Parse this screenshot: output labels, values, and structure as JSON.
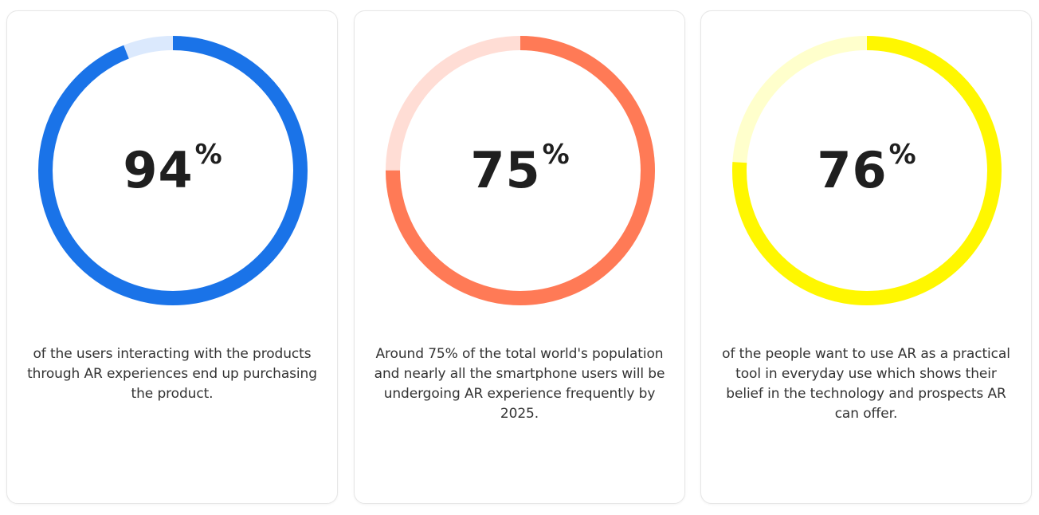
{
  "stats": [
    {
      "value": "94",
      "unit": "%",
      "percent": 94,
      "color": "#1a73e8",
      "track_color": "#dbe9fd",
      "caption": "of the users interacting with the products through AR experiences end up purchasing the product."
    },
    {
      "value": "75",
      "unit": "%",
      "percent": 75,
      "color": "#ff7a56",
      "track_color": "#ffddd5",
      "caption": "Around 75% of the total world's population and nearly all the smartphone users will be undergoing AR experience frequently by 2025."
    },
    {
      "value": "76",
      "unit": "%",
      "percent": 76,
      "color": "#fff700",
      "track_color": "#ffffcc",
      "caption": "of the people want to use AR as a practical tool in everyday use which shows their belief in the technology and prospects AR can offer."
    }
  ]
}
